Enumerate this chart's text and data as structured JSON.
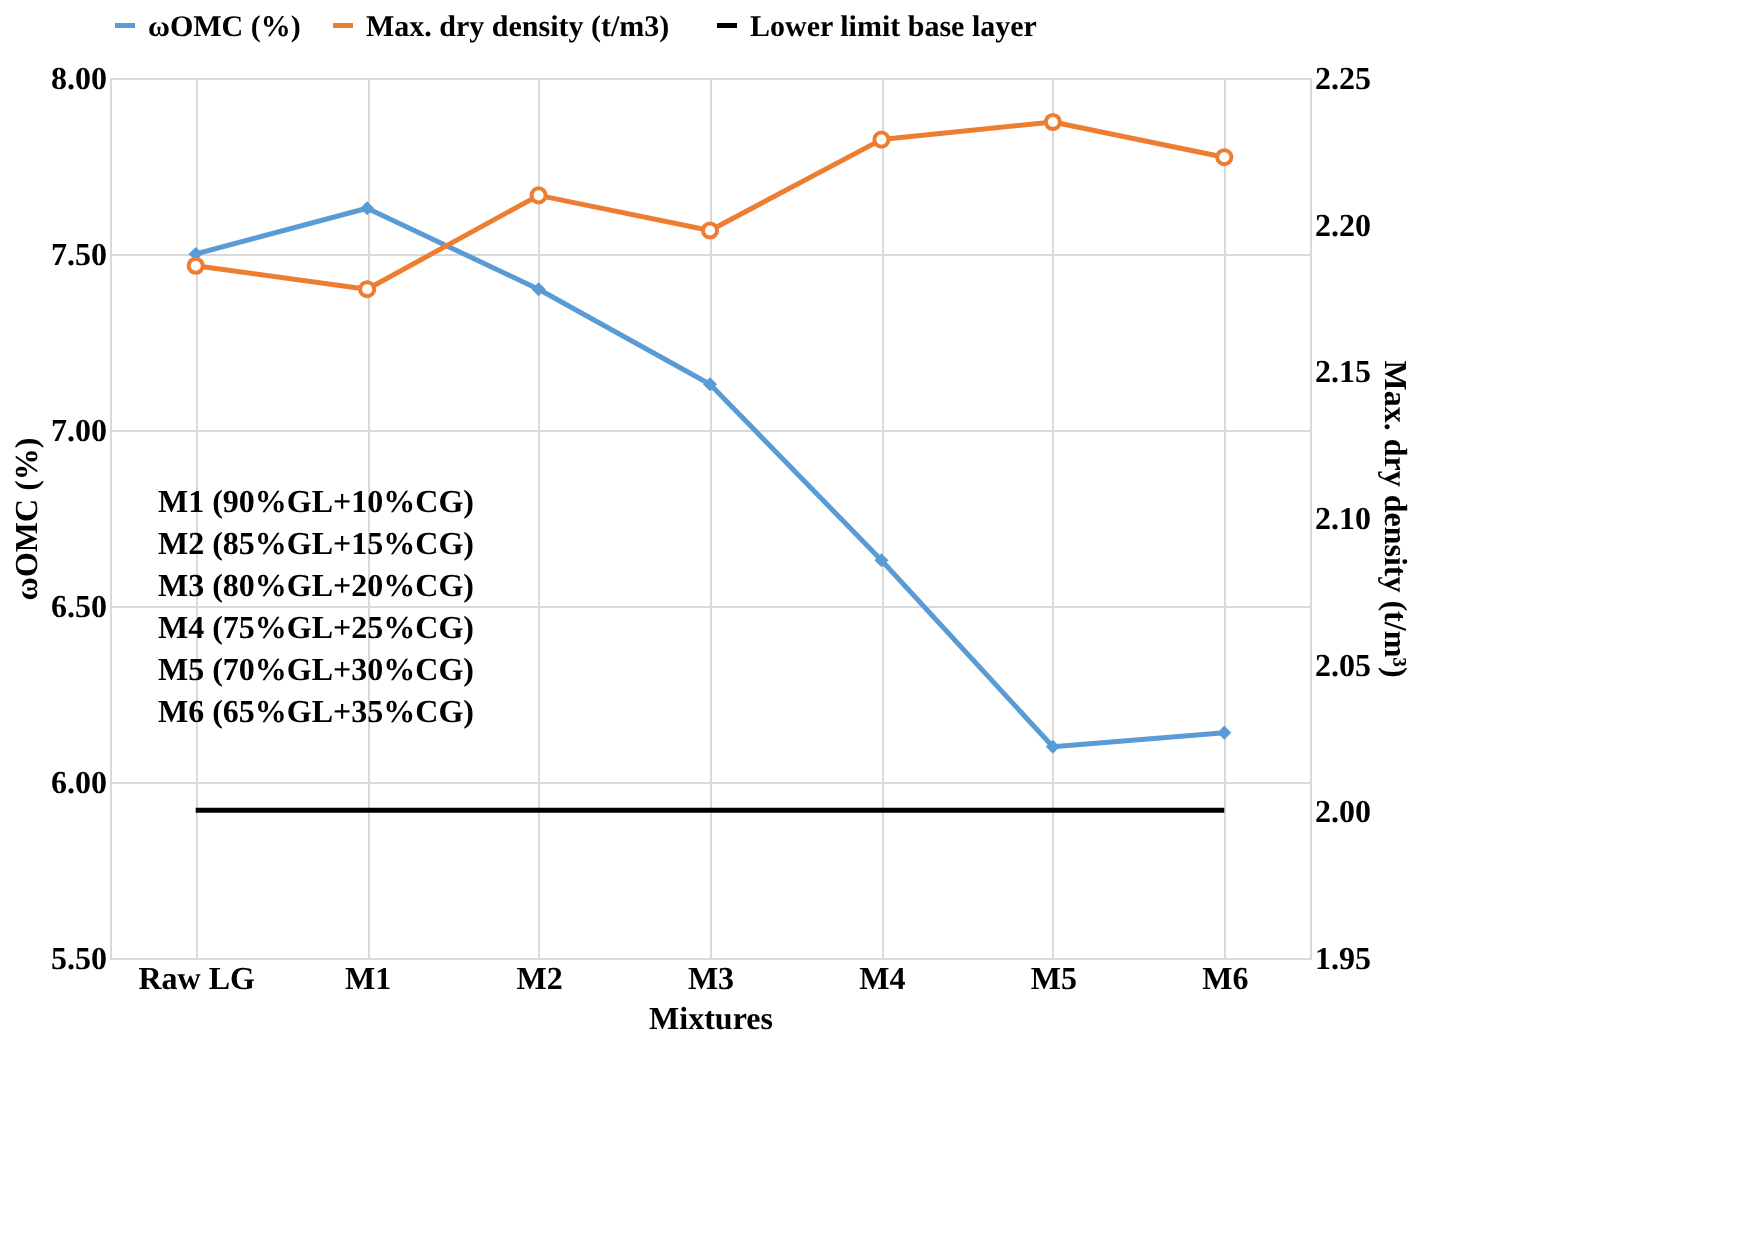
{
  "chart_data": {
    "type": "line",
    "xlabel": "Mixtures",
    "ylabel": "ωOMC (%)",
    "y2label": "Max. dry density (t/m³)",
    "categories": [
      "Raw LG",
      "M1",
      "M2",
      "M3",
      "M4",
      "M5",
      "M6"
    ],
    "series": [
      {
        "name": "ωOMC (%)",
        "color": "#5b9bd5",
        "marker": "diamond",
        "values": [
          7.5,
          7.63,
          7.4,
          7.13,
          6.63,
          6.1,
          6.14
        ]
      },
      {
        "name": "Max. dry density   (t/m3)",
        "color": "#ed7d31",
        "marker": "circle",
        "axis": "y2",
        "values": [
          2.186,
          2.178,
          2.21,
          2.198,
          2.229,
          2.235,
          2.223
        ]
      },
      {
        "name": "Lower limit base layer",
        "color": "#000000",
        "marker": "none",
        "values": [
          5.92,
          5.92,
          5.92,
          5.92,
          5.92,
          5.92,
          5.92
        ]
      }
    ],
    "ylim": [
      5.5,
      8.0
    ],
    "yticks": [
      {
        "value": 5.5,
        "label": "5.50"
      },
      {
        "value": 6.0,
        "label": "6.00"
      },
      {
        "value": 6.5,
        "label": "6.50"
      },
      {
        "value": 7.0,
        "label": "7.00"
      },
      {
        "value": 7.5,
        "label": "7.50"
      },
      {
        "value": 8.0,
        "label": "8.00"
      }
    ],
    "y2lim": [
      1.95,
      2.25
    ],
    "y2ticks": [
      {
        "value": 1.95,
        "label": "1.95"
      },
      {
        "value": 2.0,
        "label": "2.00"
      },
      {
        "value": 2.05,
        "label": "2.05"
      },
      {
        "value": 2.1,
        "label": "2.10"
      },
      {
        "value": 2.15,
        "label": "2.15"
      },
      {
        "value": 2.2,
        "label": "2.20"
      },
      {
        "value": 2.25,
        "label": "2.25"
      }
    ],
    "grid": true,
    "legend": "top",
    "line_style": "solid",
    "annotations": [
      "M1 (90%GL+10%CG)",
      "M2 (85%GL+15%CG)",
      "M3 (80%GL+20%CG)",
      "M4 (75%GL+25%CG)",
      "M5 (70%GL+30%CG)",
      "M6 (65%GL+35%CG)"
    ]
  }
}
